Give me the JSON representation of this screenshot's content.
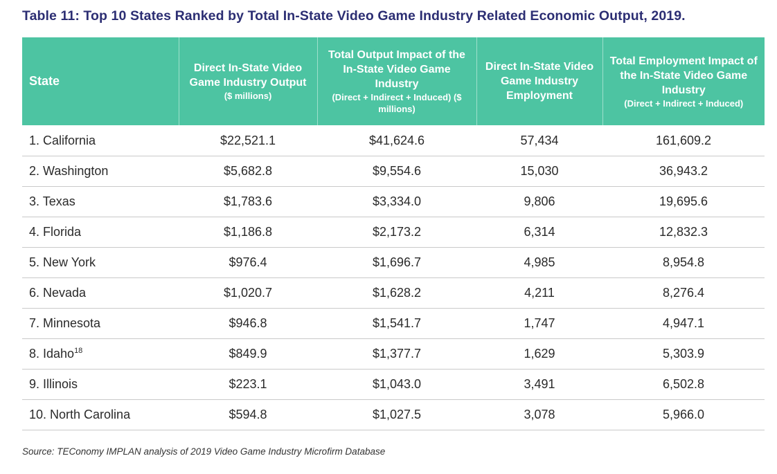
{
  "title": "Table 11: Top 10 States Ranked by Total In-State Video Game Industry Related Economic Output, 2019.",
  "headers": {
    "state": "State",
    "direct_output": {
      "main": "Direct In-State Video Game Industry Output",
      "sub": "($ millions)"
    },
    "total_output": {
      "main": "Total Output Impact of the In-State Video Game Industry",
      "sub": "(Direct + Indirect + Induced) ($ millions)"
    },
    "direct_employment": {
      "main": "Direct In-State Video Game Industry Employment",
      "sub": ""
    },
    "total_employment": {
      "main": "Total Employment Impact of the In-State Video Game Industry",
      "sub": "(Direct + Indirect + Induced)"
    }
  },
  "rows": [
    {
      "state": "1. California",
      "footnote": "",
      "direct_output": "$22,521.1",
      "total_output": "$41,624.6",
      "direct_employment": "57,434",
      "total_employment": "161,609.2"
    },
    {
      "state": "2. Washington",
      "footnote": "",
      "direct_output": "$5,682.8",
      "total_output": "$9,554.6",
      "direct_employment": "15,030",
      "total_employment": "36,943.2"
    },
    {
      "state": "3. Texas",
      "footnote": "",
      "direct_output": "$1,783.6",
      "total_output": "$3,334.0",
      "direct_employment": "9,806",
      "total_employment": "19,695.6"
    },
    {
      "state": "4. Florida",
      "footnote": "",
      "direct_output": "$1,186.8",
      "total_output": "$2,173.2",
      "direct_employment": "6,314",
      "total_employment": "12,832.3"
    },
    {
      "state": "5. New York",
      "footnote": "",
      "direct_output": "$976.4",
      "total_output": "$1,696.7",
      "direct_employment": "4,985",
      "total_employment": "8,954.8"
    },
    {
      "state": "6. Nevada",
      "footnote": "",
      "direct_output": "$1,020.7",
      "total_output": "$1,628.2",
      "direct_employment": "4,211",
      "total_employment": "8,276.4"
    },
    {
      "state": "7. Minnesota",
      "footnote": "",
      "direct_output": "$946.8",
      "total_output": "$1,541.7",
      "direct_employment": "1,747",
      "total_employment": "4,947.1"
    },
    {
      "state": "8. Idaho",
      "footnote": "18",
      "direct_output": "$849.9",
      "total_output": "$1,377.7",
      "direct_employment": "1,629",
      "total_employment": "5,303.9"
    },
    {
      "state": "9. Illinois",
      "footnote": "",
      "direct_output": "$223.1",
      "total_output": "$1,043.0",
      "direct_employment": "3,491",
      "total_employment": "6,502.8"
    },
    {
      "state": "10. North Carolina",
      "footnote": "",
      "direct_output": "$594.8",
      "total_output": "$1,027.5",
      "direct_employment": "3,078",
      "total_employment": "5,966.0"
    }
  ],
  "source": "Source: TEConomy IMPLAN analysis of 2019 Video Game Industry Microfirm Database",
  "colors": {
    "header_bg": "#4dc4a2",
    "title": "#2c2e73",
    "rule": "#c9c9c9"
  }
}
